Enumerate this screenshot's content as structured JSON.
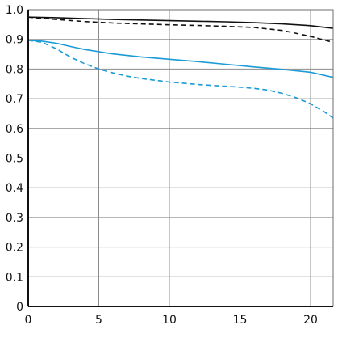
{
  "chart_data": {
    "type": "line",
    "title": "",
    "xlabel": "",
    "ylabel": "",
    "xlim": [
      0,
      21.6
    ],
    "ylim": [
      0,
      1.0
    ],
    "xticks": [
      0,
      5,
      10,
      15,
      20
    ],
    "yticks": [
      0,
      0.1,
      0.2,
      0.3,
      0.4,
      0.5,
      0.6,
      0.7,
      0.8,
      0.9,
      1.0
    ],
    "xtick_labels": [
      "0",
      "5",
      "10",
      "15",
      "20"
    ],
    "ytick_labels": [
      "0",
      "0.1",
      "0.2",
      "0.3",
      "0.4",
      "0.5",
      "0.6",
      "0.7",
      "0.8",
      "0.9",
      "1.0"
    ],
    "grid": true,
    "series": [
      {
        "color": "#111111",
        "dash": "solid",
        "x": [
          0,
          2,
          4,
          6,
          8,
          10,
          12,
          14,
          16,
          18,
          20,
          21.6
        ],
        "values": [
          0.975,
          0.973,
          0.97,
          0.967,
          0.965,
          0.963,
          0.961,
          0.959,
          0.956,
          0.952,
          0.946,
          0.937
        ]
      },
      {
        "color": "#111111",
        "dash": "dashed",
        "x": [
          0,
          2,
          4,
          6,
          8,
          10,
          12,
          14,
          16,
          18,
          20,
          21.6
        ],
        "values": [
          0.975,
          0.967,
          0.96,
          0.955,
          0.952,
          0.949,
          0.947,
          0.944,
          0.94,
          0.93,
          0.91,
          0.89
        ]
      },
      {
        "color": "#1a9ad6",
        "dash": "solid",
        "x": [
          0,
          1,
          2,
          3,
          4,
          6,
          8,
          10,
          12,
          14,
          16,
          18,
          20,
          21.6
        ],
        "values": [
          0.897,
          0.894,
          0.887,
          0.876,
          0.866,
          0.851,
          0.841,
          0.833,
          0.825,
          0.816,
          0.807,
          0.799,
          0.789,
          0.772
        ]
      },
      {
        "color": "#1a9ad6",
        "dash": "dashed",
        "x": [
          0,
          1,
          2,
          3,
          4,
          5,
          6,
          7,
          8,
          10,
          12,
          14,
          15,
          16,
          17,
          18,
          19,
          20,
          21,
          21.6
        ],
        "values": [
          0.897,
          0.89,
          0.868,
          0.84,
          0.818,
          0.8,
          0.787,
          0.776,
          0.768,
          0.756,
          0.748,
          0.742,
          0.739,
          0.735,
          0.729,
          0.718,
          0.703,
          0.683,
          0.655,
          0.635
        ]
      }
    ]
  }
}
